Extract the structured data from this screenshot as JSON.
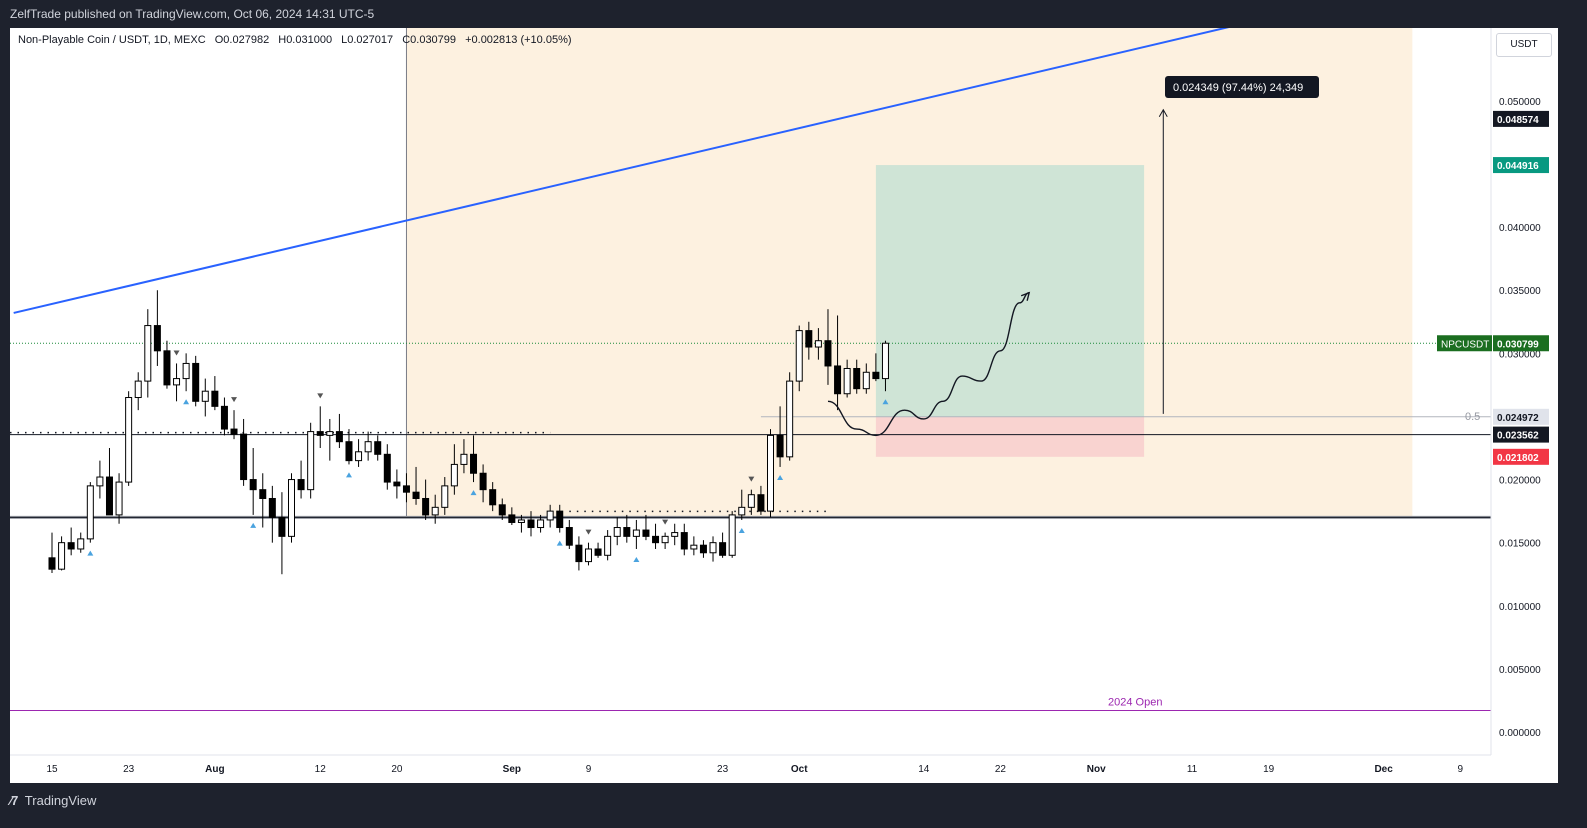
{
  "header": {
    "publisher_line": "ZelfTrade published on TradingView.com, Oct 06, 2024 14:31 UTC-5"
  },
  "legend": {
    "symbol": "Non-Playable Coin / USDT, 1D, MEXC",
    "open": "O0.027982",
    "high": "H0.031000",
    "low": "L0.027017",
    "close": "C0.030799",
    "change": "+0.002813 (+10.05%)"
  },
  "currency": "USDT",
  "footer": {
    "brand": "TradingView"
  },
  "colors": {
    "bull": "#ffffff",
    "bear": "#000000",
    "trendline": "#2962ff",
    "zone": "#fdf1e0",
    "target": "#cfe4d6",
    "stop": "#f9d3d0",
    "price_label": "#1b6e20",
    "tp_label": "#089981",
    "sl_label": "#f23645",
    "open_line": "#9c27b0",
    "marker": "#4aa3df"
  },
  "chart_data": {
    "type": "candlestick",
    "title": "",
    "xlabel": "",
    "ylabel": "",
    "ylim": [
      -0.002,
      0.0575
    ],
    "x_ticks": [
      {
        "label": "15",
        "i": 0
      },
      {
        "label": "23",
        "i": 8
      },
      {
        "label": "Aug",
        "i": 17
      },
      {
        "label": "12",
        "i": 28
      },
      {
        "label": "20",
        "i": 36
      },
      {
        "label": "Sep",
        "i": 48
      },
      {
        "label": "9",
        "i": 56
      },
      {
        "label": "23",
        "i": 70
      },
      {
        "label": "Oct",
        "i": 78
      },
      {
        "label": "14",
        "i": 91
      },
      {
        "label": "22",
        "i": 99
      },
      {
        "label": "Nov",
        "i": 109
      },
      {
        "label": "11",
        "i": 119
      },
      {
        "label": "19",
        "i": 127
      },
      {
        "label": "Dec",
        "i": 139
      },
      {
        "label": "9",
        "i": 147
      }
    ],
    "y_ticks": [
      "0.000000",
      "0.005000",
      "0.010000",
      "0.015000",
      "0.020000",
      "0.025000",
      "0.030000",
      "0.035000",
      "0.040000",
      "0.045000",
      "0.050000"
    ],
    "price_labels": [
      {
        "value": 0.048574,
        "text": "0.048574",
        "style": "black"
      },
      {
        "value": 0.044916,
        "text": "0.044916",
        "style": "green"
      },
      {
        "value": 0.030799,
        "text": "0.030799",
        "name": "NPCUSDT",
        "style": "darkgreen"
      },
      {
        "value": 0.024972,
        "text": "0.024972",
        "style": "grey"
      },
      {
        "value": 0.023562,
        "text": "0.023562",
        "style": "black"
      },
      {
        "value": 0.021802,
        "text": "0.021802",
        "style": "red"
      }
    ],
    "measure_label": "0.024349 (97.44%) 24,349",
    "fib_label": "0.5",
    "open_label": "2024 Open",
    "open_value": 0.0017,
    "support_level": 0.017,
    "resistance_level": 0.023562,
    "fib_level": 0.024972,
    "trendline": {
      "i1": -4,
      "v1": 0.0332,
      "i2": 136,
      "v2": 0.0582
    },
    "position": {
      "i1": 86,
      "i2": 114,
      "entry": 0.024972,
      "target": 0.044916,
      "stop": 0.021802
    },
    "zone": {
      "i1": 37,
      "i2": 142,
      "top": 0.0575,
      "bottom": 0.017
    },
    "vline_i": 37,
    "candles": [
      {
        "o": 0.0138,
        "h": 0.0158,
        "l": 0.0126,
        "c": 0.0129
      },
      {
        "o": 0.0129,
        "h": 0.0155,
        "l": 0.0128,
        "c": 0.015
      },
      {
        "o": 0.015,
        "h": 0.0162,
        "l": 0.014,
        "c": 0.0145
      },
      {
        "o": 0.0145,
        "h": 0.0158,
        "l": 0.0142,
        "c": 0.0153
      },
      {
        "o": 0.0153,
        "h": 0.0198,
        "l": 0.015,
        "c": 0.0195
      },
      {
        "o": 0.0195,
        "h": 0.0215,
        "l": 0.0185,
        "c": 0.0202
      },
      {
        "o": 0.0202,
        "h": 0.0225,
        "l": 0.0175,
        "c": 0.0172
      },
      {
        "o": 0.0172,
        "h": 0.0205,
        "l": 0.0165,
        "c": 0.0198
      },
      {
        "o": 0.0198,
        "h": 0.027,
        "l": 0.0195,
        "c": 0.0265
      },
      {
        "o": 0.0265,
        "h": 0.0285,
        "l": 0.0255,
        "c": 0.0278
      },
      {
        "o": 0.0278,
        "h": 0.0335,
        "l": 0.0265,
        "c": 0.0322
      },
      {
        "o": 0.0322,
        "h": 0.035,
        "l": 0.029,
        "c": 0.0302
      },
      {
        "o": 0.0302,
        "h": 0.031,
        "l": 0.0272,
        "c": 0.0275
      },
      {
        "o": 0.0275,
        "h": 0.0292,
        "l": 0.0262,
        "c": 0.028
      },
      {
        "o": 0.028,
        "h": 0.03,
        "l": 0.027,
        "c": 0.0292
      },
      {
        "o": 0.0292,
        "h": 0.0298,
        "l": 0.0258,
        "c": 0.0262
      },
      {
        "o": 0.0262,
        "h": 0.028,
        "l": 0.025,
        "c": 0.027
      },
      {
        "o": 0.027,
        "h": 0.0282,
        "l": 0.0255,
        "c": 0.0258
      },
      {
        "o": 0.0258,
        "h": 0.0265,
        "l": 0.0235,
        "c": 0.024
      },
      {
        "o": 0.024,
        "h": 0.0255,
        "l": 0.0232,
        "c": 0.0236
      },
      {
        "o": 0.0236,
        "h": 0.0248,
        "l": 0.0195,
        "c": 0.02
      },
      {
        "o": 0.02,
        "h": 0.0225,
        "l": 0.0172,
        "c": 0.0192
      },
      {
        "o": 0.0192,
        "h": 0.0205,
        "l": 0.0162,
        "c": 0.0185
      },
      {
        "o": 0.0185,
        "h": 0.0195,
        "l": 0.015,
        "c": 0.017
      },
      {
        "o": 0.017,
        "h": 0.019,
        "l": 0.0125,
        "c": 0.0155
      },
      {
        "o": 0.0155,
        "h": 0.0205,
        "l": 0.015,
        "c": 0.02
      },
      {
        "o": 0.02,
        "h": 0.0215,
        "l": 0.0185,
        "c": 0.0192
      },
      {
        "o": 0.0192,
        "h": 0.0245,
        "l": 0.0185,
        "c": 0.0238
      },
      {
        "o": 0.0238,
        "h": 0.0258,
        "l": 0.0225,
        "c": 0.0235
      },
      {
        "o": 0.0235,
        "h": 0.0248,
        "l": 0.0215,
        "c": 0.0238
      },
      {
        "o": 0.0238,
        "h": 0.0252,
        "l": 0.0225,
        "c": 0.023
      },
      {
        "o": 0.023,
        "h": 0.024,
        "l": 0.0212,
        "c": 0.0215
      },
      {
        "o": 0.0215,
        "h": 0.0232,
        "l": 0.021,
        "c": 0.0222
      },
      {
        "o": 0.0222,
        "h": 0.0238,
        "l": 0.0215,
        "c": 0.023
      },
      {
        "o": 0.023,
        "h": 0.0235,
        "l": 0.0215,
        "c": 0.022
      },
      {
        "o": 0.022,
        "h": 0.0228,
        "l": 0.0192,
        "c": 0.0198
      },
      {
        "o": 0.0198,
        "h": 0.0208,
        "l": 0.0185,
        "c": 0.0195
      },
      {
        "o": 0.0195,
        "h": 0.0205,
        "l": 0.0182,
        "c": 0.019
      },
      {
        "o": 0.019,
        "h": 0.021,
        "l": 0.018,
        "c": 0.0185
      },
      {
        "o": 0.0185,
        "h": 0.02,
        "l": 0.0168,
        "c": 0.0172
      },
      {
        "o": 0.0172,
        "h": 0.0188,
        "l": 0.0165,
        "c": 0.0178
      },
      {
        "o": 0.0178,
        "h": 0.0202,
        "l": 0.0172,
        "c": 0.0195
      },
      {
        "o": 0.0195,
        "h": 0.0228,
        "l": 0.0188,
        "c": 0.0212
      },
      {
        "o": 0.0212,
        "h": 0.0232,
        "l": 0.0205,
        "c": 0.022
      },
      {
        "o": 0.022,
        "h": 0.0235,
        "l": 0.0198,
        "c": 0.0205
      },
      {
        "o": 0.0205,
        "h": 0.0212,
        "l": 0.0182,
        "c": 0.0192
      },
      {
        "o": 0.0192,
        "h": 0.0198,
        "l": 0.0175,
        "c": 0.018
      },
      {
        "o": 0.018,
        "h": 0.0185,
        "l": 0.0168,
        "c": 0.0172
      },
      {
        "o": 0.0172,
        "h": 0.0178,
        "l": 0.0164,
        "c": 0.0166
      },
      {
        "o": 0.0166,
        "h": 0.0172,
        "l": 0.0158,
        "c": 0.0168
      },
      {
        "o": 0.0168,
        "h": 0.0175,
        "l": 0.0155,
        "c": 0.0162
      },
      {
        "o": 0.0162,
        "h": 0.0172,
        "l": 0.0158,
        "c": 0.0168
      },
      {
        "o": 0.0168,
        "h": 0.018,
        "l": 0.0162,
        "c": 0.0175
      },
      {
        "o": 0.0175,
        "h": 0.018,
        "l": 0.0158,
        "c": 0.0162
      },
      {
        "o": 0.0162,
        "h": 0.0168,
        "l": 0.0145,
        "c": 0.0148
      },
      {
        "o": 0.0148,
        "h": 0.0155,
        "l": 0.0128,
        "c": 0.0135
      },
      {
        "o": 0.0135,
        "h": 0.015,
        "l": 0.0132,
        "c": 0.0145
      },
      {
        "o": 0.0145,
        "h": 0.015,
        "l": 0.0138,
        "c": 0.014
      },
      {
        "o": 0.014,
        "h": 0.016,
        "l": 0.0136,
        "c": 0.0155
      },
      {
        "o": 0.0155,
        "h": 0.017,
        "l": 0.0148,
        "c": 0.0162
      },
      {
        "o": 0.0162,
        "h": 0.0172,
        "l": 0.015,
        "c": 0.0155
      },
      {
        "o": 0.0155,
        "h": 0.0168,
        "l": 0.0145,
        "c": 0.016
      },
      {
        "o": 0.016,
        "h": 0.0172,
        "l": 0.0152,
        "c": 0.0155
      },
      {
        "o": 0.0155,
        "h": 0.0165,
        "l": 0.0145,
        "c": 0.015
      },
      {
        "o": 0.015,
        "h": 0.0158,
        "l": 0.0145,
        "c": 0.0155
      },
      {
        "o": 0.0155,
        "h": 0.0165,
        "l": 0.0148,
        "c": 0.0158
      },
      {
        "o": 0.0158,
        "h": 0.0165,
        "l": 0.014,
        "c": 0.0145
      },
      {
        "o": 0.0145,
        "h": 0.0155,
        "l": 0.014,
        "c": 0.0148
      },
      {
        "o": 0.0148,
        "h": 0.0152,
        "l": 0.0138,
        "c": 0.0142
      },
      {
        "o": 0.0142,
        "h": 0.0155,
        "l": 0.0135,
        "c": 0.015
      },
      {
        "o": 0.015,
        "h": 0.0158,
        "l": 0.0138,
        "c": 0.014
      },
      {
        "o": 0.014,
        "h": 0.0175,
        "l": 0.0138,
        "c": 0.0172
      },
      {
        "o": 0.0172,
        "h": 0.0192,
        "l": 0.0168,
        "c": 0.0178
      },
      {
        "o": 0.0178,
        "h": 0.0192,
        "l": 0.0172,
        "c": 0.0188
      },
      {
        "o": 0.0188,
        "h": 0.0195,
        "l": 0.0172,
        "c": 0.0175
      },
      {
        "o": 0.0175,
        "h": 0.024,
        "l": 0.017,
        "c": 0.0235
      },
      {
        "o": 0.0235,
        "h": 0.0258,
        "l": 0.021,
        "c": 0.0218
      },
      {
        "o": 0.0218,
        "h": 0.0285,
        "l": 0.0215,
        "c": 0.0278
      },
      {
        "o": 0.0278,
        "h": 0.0322,
        "l": 0.027,
        "c": 0.0318
      },
      {
        "o": 0.0318,
        "h": 0.0325,
        "l": 0.0295,
        "c": 0.0305
      },
      {
        "o": 0.0305,
        "h": 0.032,
        "l": 0.0295,
        "c": 0.031
      },
      {
        "o": 0.031,
        "h": 0.0335,
        "l": 0.0275,
        "c": 0.029
      },
      {
        "o": 0.029,
        "h": 0.033,
        "l": 0.0255,
        "c": 0.0268
      },
      {
        "o": 0.0268,
        "h": 0.0295,
        "l": 0.0265,
        "c": 0.0288
      },
      {
        "o": 0.0288,
        "h": 0.0295,
        "l": 0.0268,
        "c": 0.0272
      },
      {
        "o": 0.0272,
        "h": 0.0292,
        "l": 0.0268,
        "c": 0.0285
      },
      {
        "o": 0.0285,
        "h": 0.03,
        "l": 0.0278,
        "c": 0.028
      },
      {
        "o": 0.028,
        "h": 0.031,
        "l": 0.027,
        "c": 0.0308
      }
    ],
    "markers": [
      {
        "i": 4,
        "pos": "below"
      },
      {
        "i": 14,
        "pos": "below"
      },
      {
        "i": 21,
        "pos": "below"
      },
      {
        "i": 31,
        "pos": "below"
      },
      {
        "i": 44,
        "pos": "below"
      },
      {
        "i": 53,
        "pos": "below"
      },
      {
        "i": 61,
        "pos": "below"
      },
      {
        "i": 72,
        "pos": "below"
      },
      {
        "i": 76,
        "pos": "below"
      },
      {
        "i": 87,
        "pos": "below"
      },
      {
        "i": 13,
        "pos": "above"
      },
      {
        "i": 19,
        "pos": "above"
      },
      {
        "i": 28,
        "pos": "above"
      },
      {
        "i": 56,
        "pos": "above"
      },
      {
        "i": 64,
        "pos": "above"
      },
      {
        "i": 73,
        "pos": "above"
      }
    ],
    "projection": [
      {
        "i": 81,
        "v": 0.0262
      },
      {
        "i": 84,
        "v": 0.024
      },
      {
        "i": 86,
        "v": 0.0235
      },
      {
        "i": 89,
        "v": 0.0255
      },
      {
        "i": 91,
        "v": 0.0248
      },
      {
        "i": 93,
        "v": 0.0262
      },
      {
        "i": 95,
        "v": 0.0282
      },
      {
        "i": 97,
        "v": 0.0278
      },
      {
        "i": 99,
        "v": 0.0302
      },
      {
        "i": 101,
        "v": 0.034
      },
      {
        "i": 102,
        "v": 0.0348
      }
    ],
    "arrow": {
      "i": 116,
      "from": 0.0252,
      "to": 0.0493
    }
  }
}
